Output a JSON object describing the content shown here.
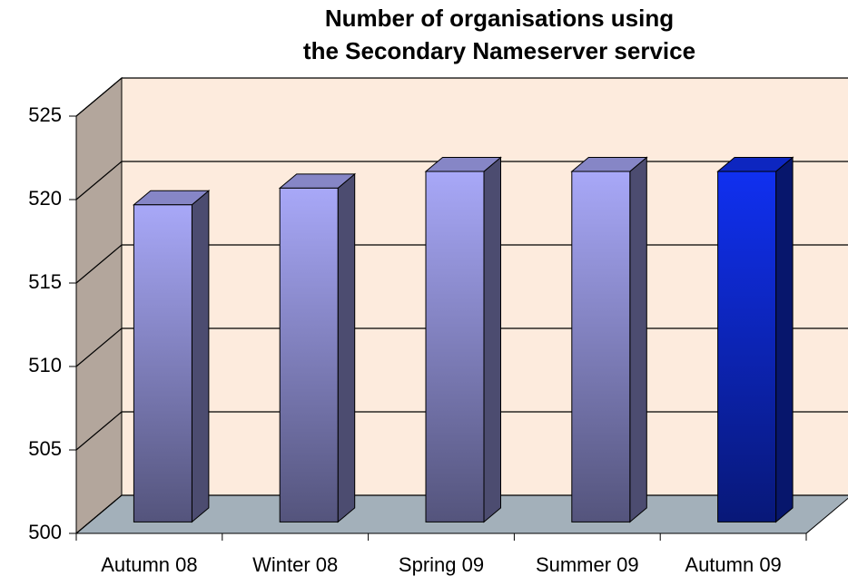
{
  "chart_data": {
    "type": "bar3d",
    "title": [
      "Number of organisations using",
      "the Secondary Nameserver service"
    ],
    "categories": [
      "Autumn 08",
      "Winter 08",
      "Spring 09",
      "Summer 09",
      "Autumn 09"
    ],
    "values": [
      519,
      520,
      521,
      521,
      521
    ],
    "colors": [
      "#a8a8f8",
      "#a8a8f8",
      "#a8a8f8",
      "#a8a8f8",
      "#1030f0"
    ],
    "ylim": [
      500,
      525
    ],
    "yticks": [
      500,
      505,
      510,
      515,
      520,
      525
    ],
    "grid": true
  }
}
